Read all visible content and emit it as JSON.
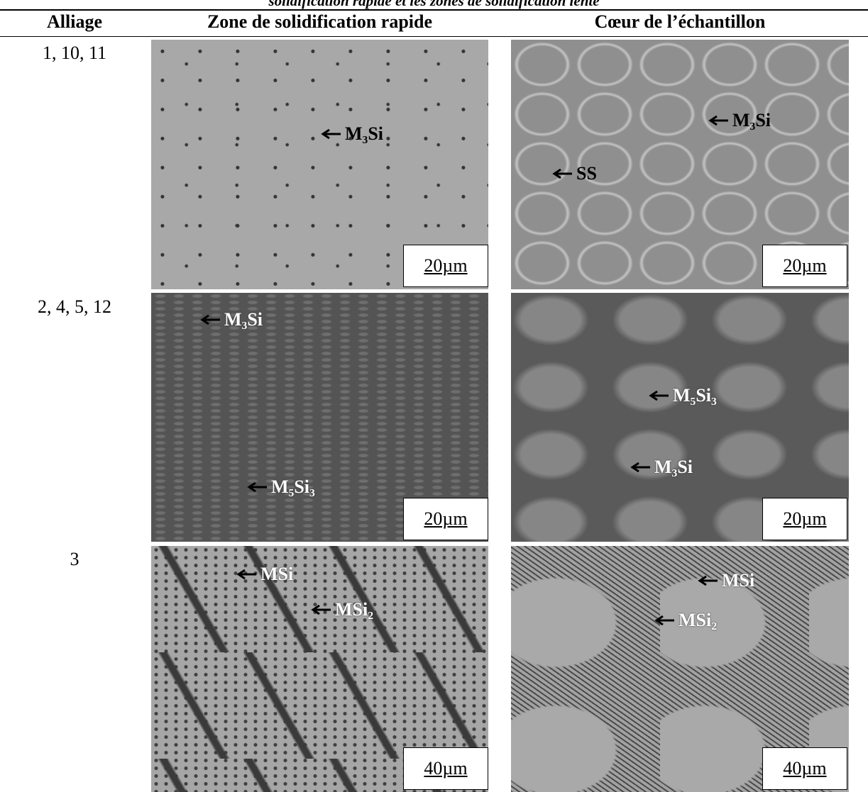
{
  "caption": "solidification rapide et les zones de solidification lente",
  "table": {
    "header": [
      "Alliage",
      "Zone de solidification rapide",
      "Cœur de l’échantillon"
    ],
    "rows": [
      {
        "alloy": "1, 10, 11",
        "cells": [
          {
            "labels": [
              "M₃Si"
            ],
            "scale": "20µm"
          },
          {
            "labels": [
              "M₃Si",
              "SS"
            ],
            "scale": "20µm"
          }
        ]
      },
      {
        "alloy": "2, 4, 5, 12",
        "cells": [
          {
            "labels": [
              "M₃Si",
              "M₅Si₃"
            ],
            "scale": "20µm"
          },
          {
            "labels": [
              "M₅Si₃",
              "M₃Si"
            ],
            "scale": "20µm"
          }
        ]
      },
      {
        "alloy": "3",
        "cells": [
          {
            "labels": [
              "MSi",
              "MSi₂"
            ],
            "scale": "40µm"
          },
          {
            "labels": [
              "MSi",
              "MSi₂"
            ],
            "scale": "40µm"
          }
        ]
      }
    ]
  }
}
